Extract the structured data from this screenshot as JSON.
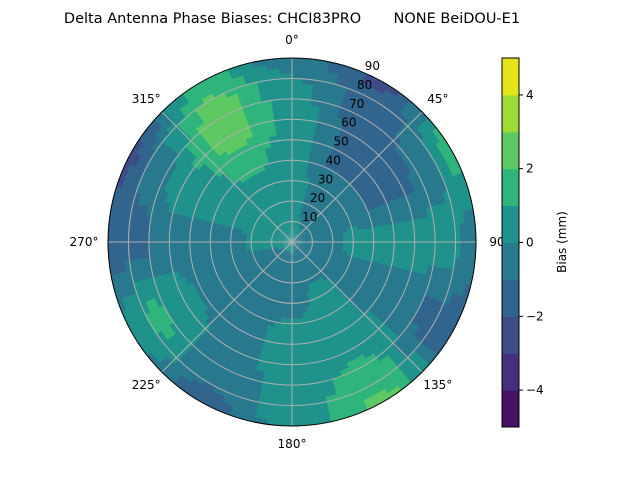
{
  "chart_data": {
    "type": "heatmap",
    "subtype": "polar-filled-contour",
    "title": "Delta Antenna Phase Biases: CHCI83PRO       NONE BeiDOU-E1",
    "colorbar_label": "Bias (mm)",
    "colormap": "viridis",
    "levels": [
      -5,
      -4,
      -3,
      -2,
      -1,
      0,
      1,
      2,
      3,
      4,
      5
    ],
    "level_colors": [
      "#471164",
      "#472f7d",
      "#3e4c8a",
      "#32658e",
      "#29798e",
      "#20928c",
      "#2fb47c",
      "#5ec962",
      "#a0da39",
      "#e5e419"
    ],
    "colorbar_ticks": [
      -4,
      -2,
      0,
      2,
      4
    ],
    "colorbar_tick_labels": [
      "−4",
      "−2",
      "0",
      "2",
      "4"
    ],
    "clim": [
      -5,
      5
    ],
    "angular_direction": "clockwise",
    "angular_zero": "top",
    "angular_ticks": [
      0,
      45,
      90,
      135,
      180,
      225,
      270,
      315
    ],
    "angular_tick_labels": [
      "0°",
      "45°",
      "90°",
      "135°",
      "180°",
      "225°",
      "270°",
      "315°"
    ],
    "radial_ticks": [
      10,
      20,
      30,
      40,
      50,
      60,
      70,
      80,
      90
    ],
    "radial_tick_labels": [
      "10",
      "20",
      "30",
      "40",
      "50",
      "60",
      "70",
      "80",
      "90"
    ],
    "rlim": [
      0,
      90
    ],
    "grid": true,
    "azimuth": [
      0,
      30,
      60,
      90,
      120,
      150,
      180,
      210,
      240,
      270,
      300,
      330
    ],
    "zenith": [
      0,
      15,
      30,
      45,
      60,
      75,
      90
    ],
    "values": [
      [
        0.5,
        0.5,
        0.5,
        0.5,
        0.8,
        0.3,
        -0.5
      ],
      [
        0.3,
        -0.3,
        -0.5,
        -1.3,
        -1.3,
        -1.5,
        -2.2
      ],
      [
        0.0,
        -0.5,
        -0.5,
        -1.3,
        -1.3,
        -0.5,
        1.5
      ],
      [
        -0.3,
        -0.5,
        0.3,
        0.5,
        0.5,
        0.5,
        -0.5
      ],
      [
        -0.3,
        -0.5,
        -0.5,
        -0.5,
        -0.5,
        -1.3,
        -1.5
      ],
      [
        -0.3,
        -0.5,
        0.5,
        0.5,
        0.8,
        1.5,
        2.3
      ],
      [
        0.3,
        -0.5,
        -0.5,
        0.5,
        0.5,
        0.5,
        0.5
      ],
      [
        0.3,
        -0.5,
        -0.5,
        -0.5,
        -0.5,
        -0.8,
        -1.5
      ],
      [
        0.3,
        -0.5,
        -0.5,
        -0.5,
        0.5,
        1.3,
        0.5
      ],
      [
        0.3,
        0.5,
        -0.5,
        -0.5,
        -0.5,
        -1.3,
        -1.5
      ],
      [
        0.5,
        0.5,
        0.5,
        0.5,
        0.5,
        -0.5,
        -2.3
      ],
      [
        0.5,
        0.5,
        0.5,
        1.5,
        2.5,
        2.5,
        1.3
      ]
    ]
  }
}
